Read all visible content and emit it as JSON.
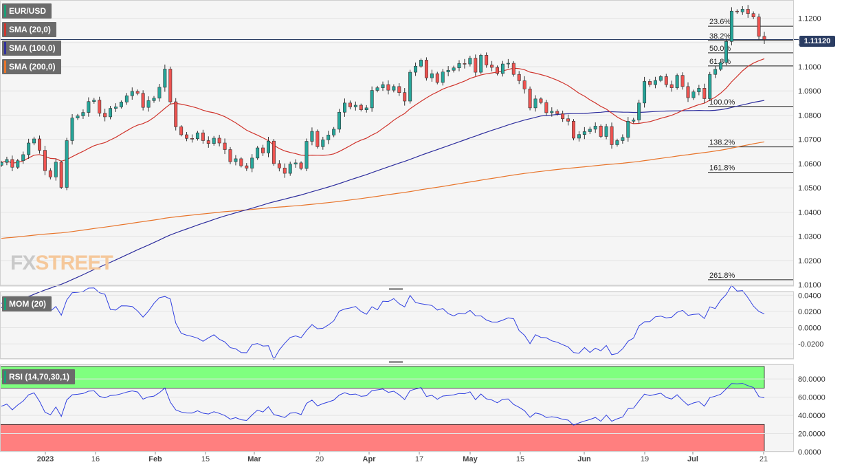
{
  "instrument": "EUR/USD",
  "watermark": {
    "part1": "FX",
    "part2": "STREET"
  },
  "current_price": "1.11120",
  "legends": {
    "main": {
      "label": "EUR/USD",
      "color": "#1b9e77"
    },
    "sma20": {
      "label": "SMA (20,0)",
      "color": "#d0342c"
    },
    "sma100": {
      "label": "SMA (100,0)",
      "color": "#2e2e9e"
    },
    "sma200": {
      "label": "SMA (200,0)",
      "color": "#e8742a"
    },
    "mom": {
      "label": "MOM (20)",
      "color": "#1b9e77"
    },
    "rsi": {
      "label": "RSI (14,70,30,1)",
      "color": "#1b9e77"
    }
  },
  "colors": {
    "up": "#26a69a",
    "down": "#ef5350",
    "sma20": "#d0342c",
    "sma100": "#2e2e9e",
    "sma200": "#e8742a",
    "indicator": "#2f3fe0",
    "rsi_overbought_fill": "#7fff7f",
    "rsi_oversold_fill": "#ff7f7f"
  },
  "chart_data": [
    {
      "type": "candlestick",
      "title": "EUR/USD",
      "y_ticks": [
        "1.1200",
        "1.1100",
        "1.1000",
        "1.0900",
        "1.0800",
        "1.0700",
        "1.0600",
        "1.0500",
        "1.0400",
        "1.0300",
        "1.0200",
        "1.0100"
      ],
      "ylim": [
        1.0095,
        1.1275
      ],
      "x_ticks": [
        "2023",
        "16",
        "Feb",
        "15",
        "Mar",
        "20",
        "Apr",
        "17",
        "May",
        "15",
        "Jun",
        "19",
        "Jul",
        "21"
      ],
      "fibonacci": [
        {
          "label": "23.6%",
          "value": 1.1167
        },
        {
          "label": "38.2%",
          "value": 1.1108
        },
        {
          "label": "50.0%",
          "value": 1.1057
        },
        {
          "label": "61.8%",
          "value": 1.1003
        },
        {
          "label": "100.0%",
          "value": 1.0836
        },
        {
          "label": "138.2%",
          "value": 1.0669
        },
        {
          "label": "161.8%",
          "value": 1.0564
        },
        {
          "label": "261.8%",
          "value": 1.0121
        }
      ],
      "closes": [
        1.0605,
        1.0617,
        1.0585,
        1.0612,
        1.0637,
        1.0685,
        1.0702,
        1.0655,
        1.0571,
        1.0545,
        1.0606,
        1.0502,
        1.0695,
        1.0788,
        1.0797,
        1.0811,
        1.0856,
        1.0862,
        1.0808,
        1.0793,
        1.0828,
        1.0834,
        1.0854,
        1.088,
        1.0898,
        1.089,
        1.0832,
        1.086,
        1.087,
        1.0915,
        1.099,
        1.0855,
        1.0752,
        1.0719,
        1.0704,
        1.0703,
        1.0727,
        1.0695,
        1.0683,
        1.0705,
        1.0685,
        1.0658,
        1.0608,
        1.062,
        1.0591,
        1.0581,
        1.0623,
        1.0665,
        1.0644,
        1.0693,
        1.06,
        1.0582,
        1.056,
        1.0598,
        1.0603,
        1.058,
        1.0692,
        1.0733,
        1.067,
        1.0698,
        1.0718,
        1.0742,
        1.0812,
        1.085,
        1.0834,
        1.0841,
        1.0822,
        1.083,
        1.0902,
        1.0913,
        1.0926,
        1.0903,
        1.0918,
        1.0893,
        1.0858,
        1.0977,
        1.1002,
        1.1027,
        1.0954,
        1.0971,
        1.0935,
        1.0978,
        1.0985,
        1.0995,
        1.1013,
        1.1011,
        1.1035,
        1.0977,
        1.1047,
        1.1007,
        1.0997,
        1.0972,
        1.1011,
        1.1014,
        1.0968,
        1.0942,
        1.0908,
        1.083,
        1.0867,
        1.0852,
        1.081,
        1.0816,
        1.0806,
        1.0785,
        1.0775,
        1.0705,
        1.072,
        1.0732,
        1.0742,
        1.0755,
        1.0712,
        1.0753,
        1.0678,
        1.0695,
        1.0708,
        1.0775,
        1.078,
        1.085,
        1.0939,
        1.0926,
        1.0943,
        1.0959,
        1.0926,
        1.0913,
        1.0964,
        1.0918,
        1.0872,
        1.0896,
        1.0911,
        1.0868,
        1.0968,
        1.0989,
        1.1017,
        1.1104,
        1.1229,
        1.1226,
        1.1237,
        1.1219,
        1.1205,
        1.1125,
        1.1112
      ]
    },
    {
      "type": "line",
      "title": "MOM (20)",
      "y_ticks": [
        "0.0400",
        "0.0200",
        "0.0000",
        "-0.0200"
      ],
      "ylim": [
        -0.0385,
        0.0445
      ]
    },
    {
      "type": "line",
      "title": "RSI (14,70,30,1)",
      "y_ticks": [
        "80.0000",
        "60.0000",
        "40.0000",
        "20.0000",
        "0.0000"
      ],
      "ylim": [
        0,
        96
      ],
      "overbought": 70,
      "oversold": 30
    }
  ]
}
